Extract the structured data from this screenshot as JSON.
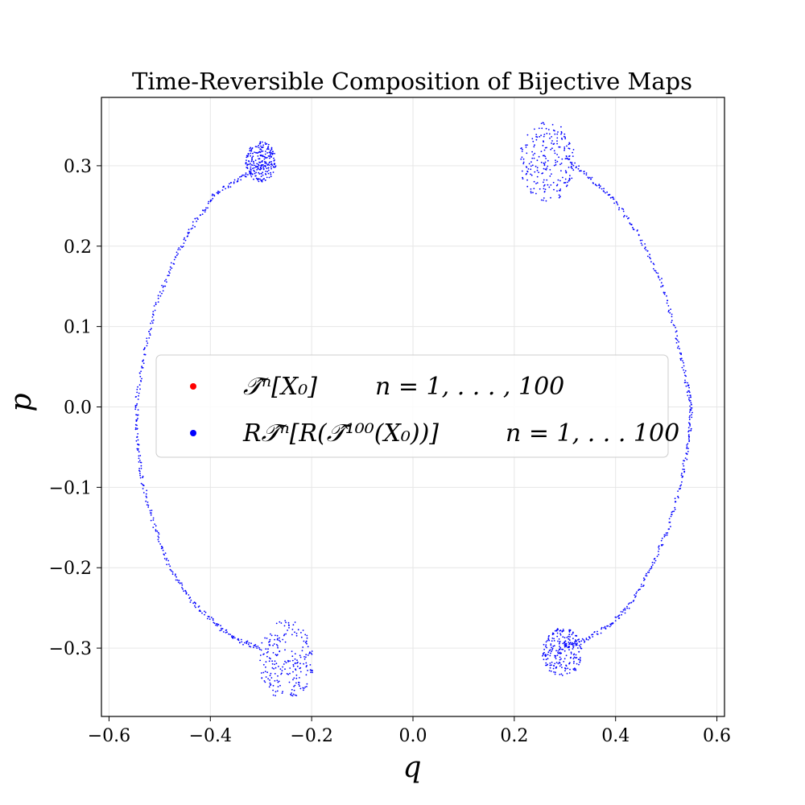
{
  "chart_data": {
    "type": "scatter",
    "title": "Time-Reversible Composition of Bijective Maps",
    "xlabel": "q",
    "ylabel": "p",
    "xlim": [
      -0.615,
      0.615
    ],
    "ylim": [
      -0.385,
      0.385
    ],
    "xticks": [
      {
        "value": -0.6,
        "label": "−0.6"
      },
      {
        "value": -0.4,
        "label": "−0.4"
      },
      {
        "value": -0.2,
        "label": "−0.2"
      },
      {
        "value": 0.0,
        "label": "0.0"
      },
      {
        "value": 0.2,
        "label": "0.2"
      },
      {
        "value": 0.4,
        "label": "0.4"
      },
      {
        "value": 0.6,
        "label": "0.6"
      }
    ],
    "yticks": [
      {
        "value": 0.3,
        "label": "0.3"
      },
      {
        "value": 0.2,
        "label": "0.2"
      },
      {
        "value": 0.1,
        "label": "0.1"
      },
      {
        "value": 0.0,
        "label": "0.0"
      },
      {
        "value": -0.1,
        "label": "−0.1"
      },
      {
        "value": -0.2,
        "label": "−0.2"
      },
      {
        "value": -0.3,
        "label": "−0.3"
      }
    ],
    "grid": true,
    "legend_position": "center",
    "colors": {
      "forward": "#ff0000",
      "reverse": "#0000ff"
    },
    "series": [
      {
        "key": "forward",
        "legend_label": "𝒯̂ⁿ[X₀]",
        "legend_range": "n = 1, . . . , 100",
        "color": "#ff0000"
      },
      {
        "key": "reverse",
        "legend_label": "R𝒯̂ⁿ[R(𝒯̂¹⁰⁰(X₀))]",
        "legend_range": "n = 1, . . . 100",
        "color": "#0000ff"
      }
    ],
    "curve_samples": {
      "right_arc": [
        [
          0.3,
          0.31
        ],
        [
          0.35,
          0.285
        ],
        [
          0.4,
          0.255
        ],
        [
          0.45,
          0.21
        ],
        [
          0.49,
          0.155
        ],
        [
          0.52,
          0.09
        ],
        [
          0.54,
          0.03
        ],
        [
          0.55,
          0.0
        ],
        [
          0.545,
          -0.04
        ],
        [
          0.53,
          -0.09
        ],
        [
          0.505,
          -0.15
        ],
        [
          0.47,
          -0.2
        ],
        [
          0.43,
          -0.245
        ],
        [
          0.39,
          -0.27
        ],
        [
          0.34,
          -0.29
        ],
        [
          0.29,
          -0.3
        ]
      ],
      "left_arc": [
        [
          -0.3,
          0.3
        ],
        [
          -0.34,
          0.285
        ],
        [
          -0.39,
          0.265
        ],
        [
          -0.43,
          0.23
        ],
        [
          -0.47,
          0.185
        ],
        [
          -0.505,
          0.13
        ],
        [
          -0.53,
          0.07
        ],
        [
          -0.545,
          0.01
        ],
        [
          -0.545,
          -0.04
        ],
        [
          -0.535,
          -0.09
        ],
        [
          -0.51,
          -0.15
        ],
        [
          -0.48,
          -0.2
        ],
        [
          -0.44,
          -0.24
        ],
        [
          -0.39,
          -0.27
        ],
        [
          -0.345,
          -0.29
        ],
        [
          -0.3,
          -0.3
        ]
      ],
      "lobes": [
        {
          "center": [
            0.265,
            0.305
          ],
          "spread": [
            0.055,
            0.05
          ]
        },
        {
          "center": [
            -0.3,
            0.305
          ],
          "spread": [
            0.03,
            0.025
          ]
        },
        {
          "center": [
            -0.25,
            -0.315
          ],
          "spread": [
            0.055,
            0.05
          ]
        },
        {
          "center": [
            0.295,
            -0.305
          ],
          "spread": [
            0.04,
            0.03
          ]
        }
      ]
    }
  }
}
